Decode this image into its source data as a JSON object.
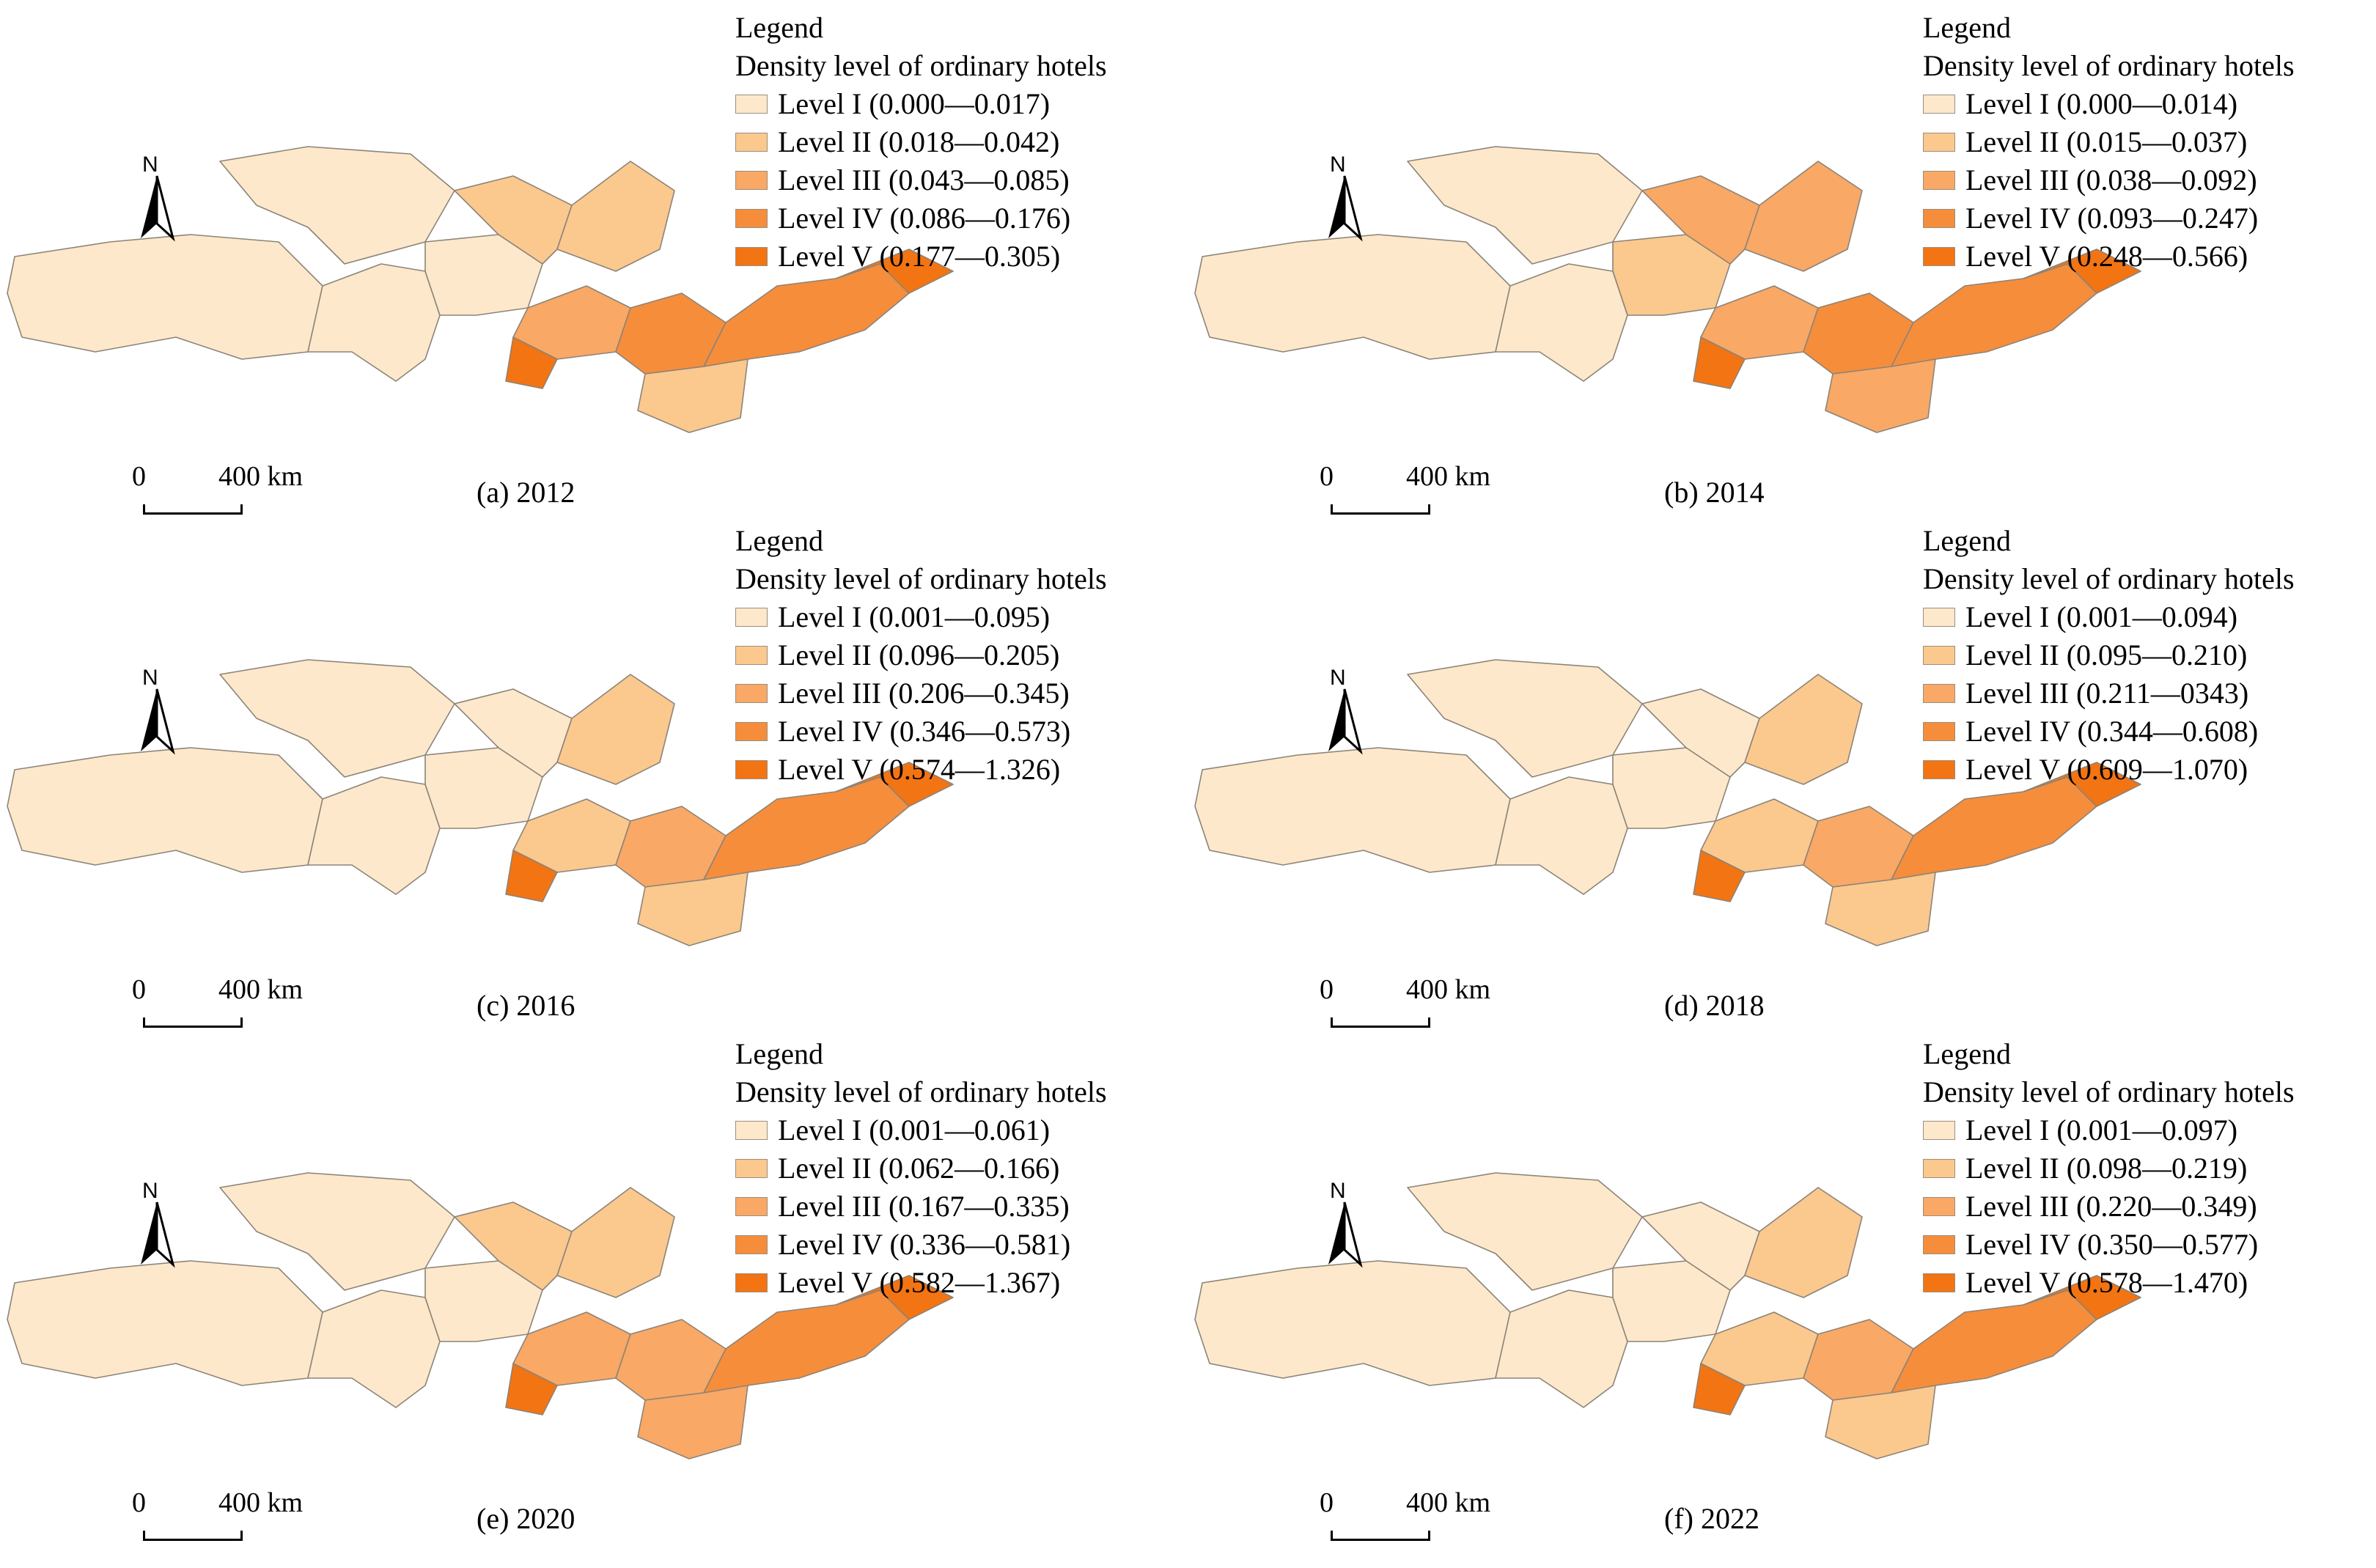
{
  "panels": [
    {
      "caption": "(a) 2012",
      "legend": {
        "title": "Legend",
        "subtitle": "Density level of ordinary hotels",
        "items": [
          {
            "label": "Level I (0.000—0.017)",
            "color": "#fde8cb"
          },
          {
            "label": "Level II (0.018—0.042)",
            "color": "#fbc88e"
          },
          {
            "label": "Level III (0.043—0.085)",
            "color": "#f9a865"
          },
          {
            "label": "Level IV (0.086—0.176)",
            "color": "#f68d3b"
          },
          {
            "label": "Level V (0.177—0.305)",
            "color": "#f37413"
          }
        ]
      },
      "region_levels": [
        1,
        1,
        1,
        1,
        2,
        2,
        3,
        4,
        4,
        5,
        5,
        2
      ]
    },
    {
      "caption": "(b) 2014",
      "legend": {
        "title": "Legend",
        "subtitle": "Density level of ordinary hotels",
        "items": [
          {
            "label": "Level I (0.000—0.014)",
            "color": "#fde8cb"
          },
          {
            "label": "Level II (0.015—0.037)",
            "color": "#fbc88e"
          },
          {
            "label": "Level III (0.038—0.092)",
            "color": "#f9a865"
          },
          {
            "label": "Level IV (0.093—0.247)",
            "color": "#f68d3b"
          },
          {
            "label": "Level V (0.248—0.566)",
            "color": "#f37413"
          }
        ]
      },
      "region_levels": [
        1,
        1,
        1,
        2,
        3,
        3,
        3,
        4,
        4,
        5,
        5,
        3
      ]
    },
    {
      "caption": "(c) 2016",
      "legend": {
        "title": "Legend",
        "subtitle": "Density level of ordinary hotels",
        "items": [
          {
            "label": "Level I (0.001—0.095)",
            "color": "#fde8cb"
          },
          {
            "label": "Level II (0.096—0.205)",
            "color": "#fbc88e"
          },
          {
            "label": "Level III (0.206—0.345)",
            "color": "#f9a865"
          },
          {
            "label": "Level IV (0.346—0.573)",
            "color": "#f68d3b"
          },
          {
            "label": "Level V (0.574—1.326)",
            "color": "#f37413"
          }
        ]
      },
      "region_levels": [
        1,
        1,
        1,
        1,
        1,
        2,
        2,
        3,
        4,
        5,
        5,
        2
      ]
    },
    {
      "caption": "(d) 2018",
      "legend": {
        "title": "Legend",
        "subtitle": "Density level of ordinary hotels",
        "items": [
          {
            "label": "Level I (0.001—0.094)",
            "color": "#fde8cb"
          },
          {
            "label": "Level II (0.095—0.210)",
            "color": "#fbc88e"
          },
          {
            "label": "Level III (0.211—0343)",
            "color": "#f9a865"
          },
          {
            "label": "Level IV (0.344—0.608)",
            "color": "#f68d3b"
          },
          {
            "label": "Level V (0.609—1.070)",
            "color": "#f37413"
          }
        ]
      },
      "region_levels": [
        1,
        1,
        1,
        1,
        1,
        2,
        2,
        3,
        4,
        5,
        5,
        2
      ]
    },
    {
      "caption": "(e) 2020",
      "legend": {
        "title": "Legend",
        "subtitle": "Density level of ordinary hotels",
        "items": [
          {
            "label": "Level I (0.001—0.061)",
            "color": "#fde8cb"
          },
          {
            "label": "Level II (0.062—0.166)",
            "color": "#fbc88e"
          },
          {
            "label": "Level III (0.167—0.335)",
            "color": "#f9a865"
          },
          {
            "label": "Level IV (0.336—0.581)",
            "color": "#f68d3b"
          },
          {
            "label": "Level V (0.582—1.367)",
            "color": "#f37413"
          }
        ]
      },
      "region_levels": [
        1,
        1,
        1,
        1,
        2,
        2,
        3,
        3,
        4,
        5,
        5,
        3
      ]
    },
    {
      "caption": "(f) 2022",
      "legend": {
        "title": "Legend",
        "subtitle": "Density level of ordinary hotels",
        "items": [
          {
            "label": "Level I (0.001—0.097)",
            "color": "#fde8cb"
          },
          {
            "label": "Level II (0.098—0.219)",
            "color": "#fbc88e"
          },
          {
            "label": "Level III (0.220—0.349)",
            "color": "#f9a865"
          },
          {
            "label": "Level IV (0.350—0.577)",
            "color": "#f68d3b"
          },
          {
            "label": "Level V (0.578—1.470)",
            "color": "#f37413"
          }
        ]
      },
      "region_levels": [
        1,
        1,
        1,
        1,
        1,
        2,
        2,
        3,
        4,
        5,
        5,
        2
      ]
    }
  ],
  "north_arrow": {
    "letter": "N"
  },
  "scale_bar": {
    "start": "0",
    "distance": "400 km"
  }
}
